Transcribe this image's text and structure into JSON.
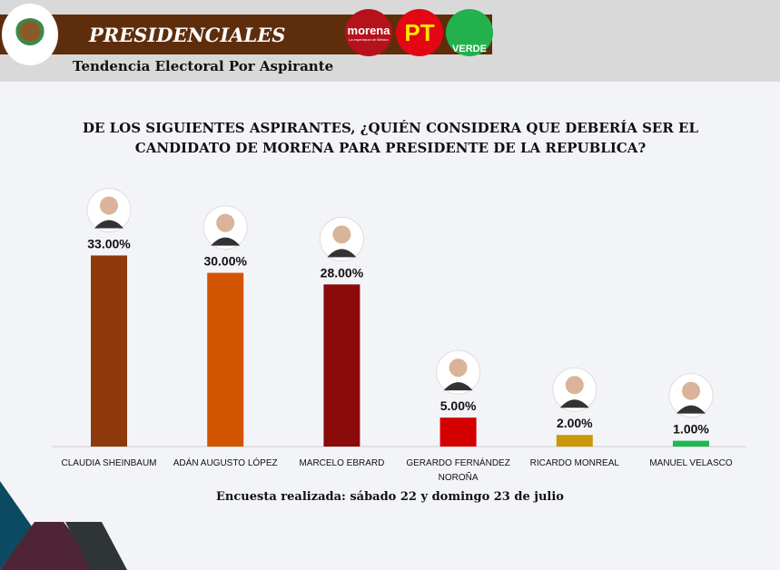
{
  "header": {
    "title": "PRESIDENCIALES",
    "subtitle": "Tendencia Electoral Por Aspirante",
    "logos": [
      {
        "label": "morena",
        "tagline": "La esperanza de México",
        "color": "#b5121b"
      },
      {
        "label": "PT",
        "color": "#e30613"
      },
      {
        "label": "VERDE",
        "color": "#22b14c"
      }
    ]
  },
  "footer": "Encuesta realizada: sábado 22 y domingo 23 de julio",
  "chart_data": {
    "type": "bar",
    "title": "DE LOS SIGUIENTES ASPIRANTES, ¿QUIÉN CONSIDERA QUE DEBERÍA SER EL CANDIDATO DE MORENA PARA PRESIDENTE DE LA REPUBLICA?",
    "categories": [
      "CLAUDIA SHEINBAUM",
      "ADÁN AUGUSTO LÓPEZ",
      "MARCELO EBRARD",
      "GERARDO FERNÁNDEZ NOROÑA",
      "RICARDO MONREAL",
      "MANUEL VELASCO"
    ],
    "values": [
      33,
      30,
      28,
      5,
      2,
      1
    ],
    "labels": [
      "33.00%",
      "30.00%",
      "28.00%",
      "5.00%",
      "2.00%",
      "1.00%"
    ],
    "colors": [
      "#8e3a0c",
      "#d35400",
      "#8b0a0a",
      "#d40000",
      "#c9960c",
      "#1fb853"
    ],
    "ylim": [
      0,
      35
    ],
    "grid": false,
    "legend": "none"
  }
}
